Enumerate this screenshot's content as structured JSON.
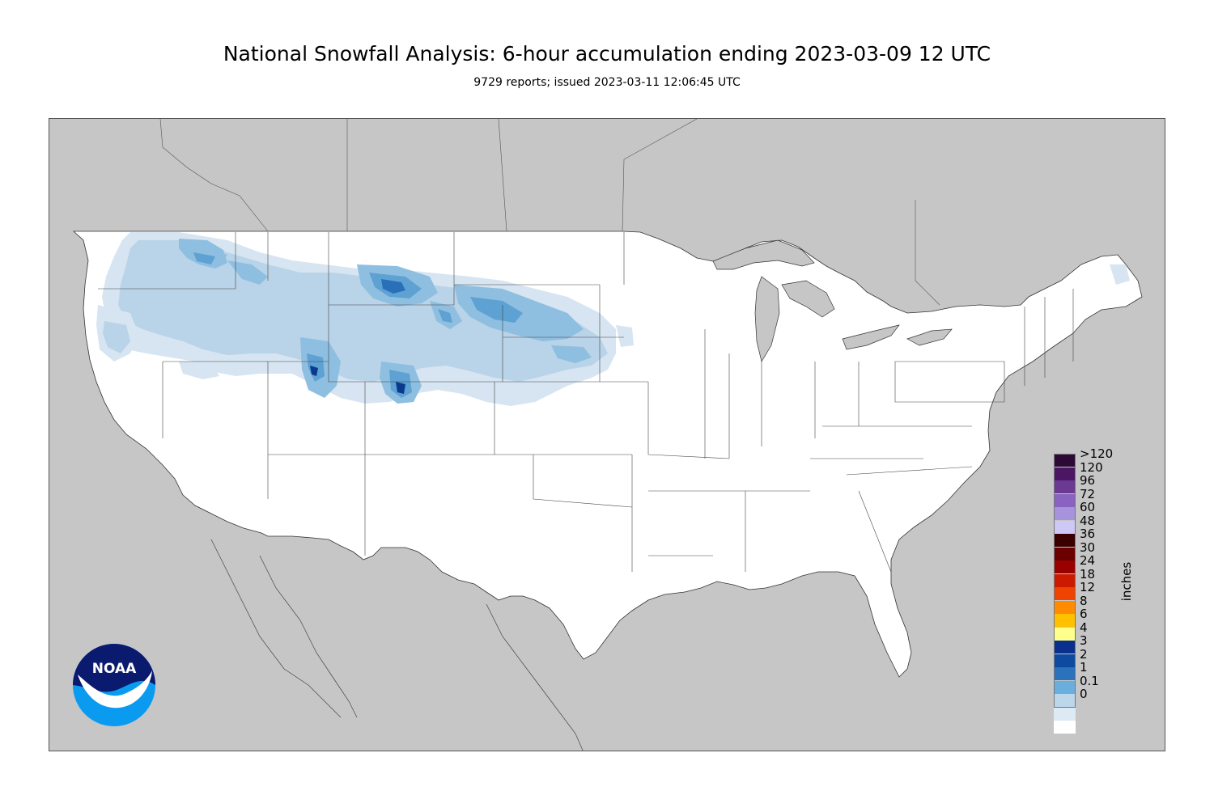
{
  "title": "National Snowfall Analysis: 6-hour accumulation ending 2023-03-09 12 UTC",
  "subtitle": "9729 reports; issued 2023-03-11 12:06:45 UTC",
  "legend": {
    "units_label": "inches",
    "bins": [
      {
        "label": ">120",
        "color": "#2b0a35"
      },
      {
        "label": "120",
        "color": "#4b1763"
      },
      {
        "label": "96",
        "color": "#6a3a93"
      },
      {
        "label": "72",
        "color": "#8a62c0"
      },
      {
        "label": "60",
        "color": "#a793db"
      },
      {
        "label": "48",
        "color": "#cdc8f6"
      },
      {
        "label": "36",
        "color": "#3a0000"
      },
      {
        "label": "30",
        "color": "#6a0000"
      },
      {
        "label": "24",
        "color": "#9a0000"
      },
      {
        "label": "18",
        "color": "#cc1a00"
      },
      {
        "label": "12",
        "color": "#ee4400"
      },
      {
        "label": "8",
        "color": "#ff8c00"
      },
      {
        "label": "6",
        "color": "#ffc000"
      },
      {
        "label": "4",
        "color": "#ffff8c"
      },
      {
        "label": "3",
        "color": "#0a2f8c"
      },
      {
        "label": "2",
        "color": "#0d4aa0"
      },
      {
        "label": "1",
        "color": "#2a72bc"
      },
      {
        "label": "0.1",
        "color": "#6aaedd"
      },
      {
        "label": "0",
        "color": "#bcd6ea"
      }
    ],
    "bottom_colors": [
      "#dde9f3",
      "#ffffff"
    ]
  },
  "logo": {
    "text": "NOAA",
    "name": "noaa-logo"
  },
  "colors": {
    "background_land_outside": "#c6c6c6",
    "water": "#c6c6c6",
    "conus_land": "#ffffff",
    "snow_light": "#d6e5f1",
    "snow_01": "#b9d3e8",
    "snow_1": "#8fbfe0",
    "snow_2": "#5ea1d3",
    "snow_3": "#2a70b8",
    "snow_4": "#0a3a8e"
  }
}
